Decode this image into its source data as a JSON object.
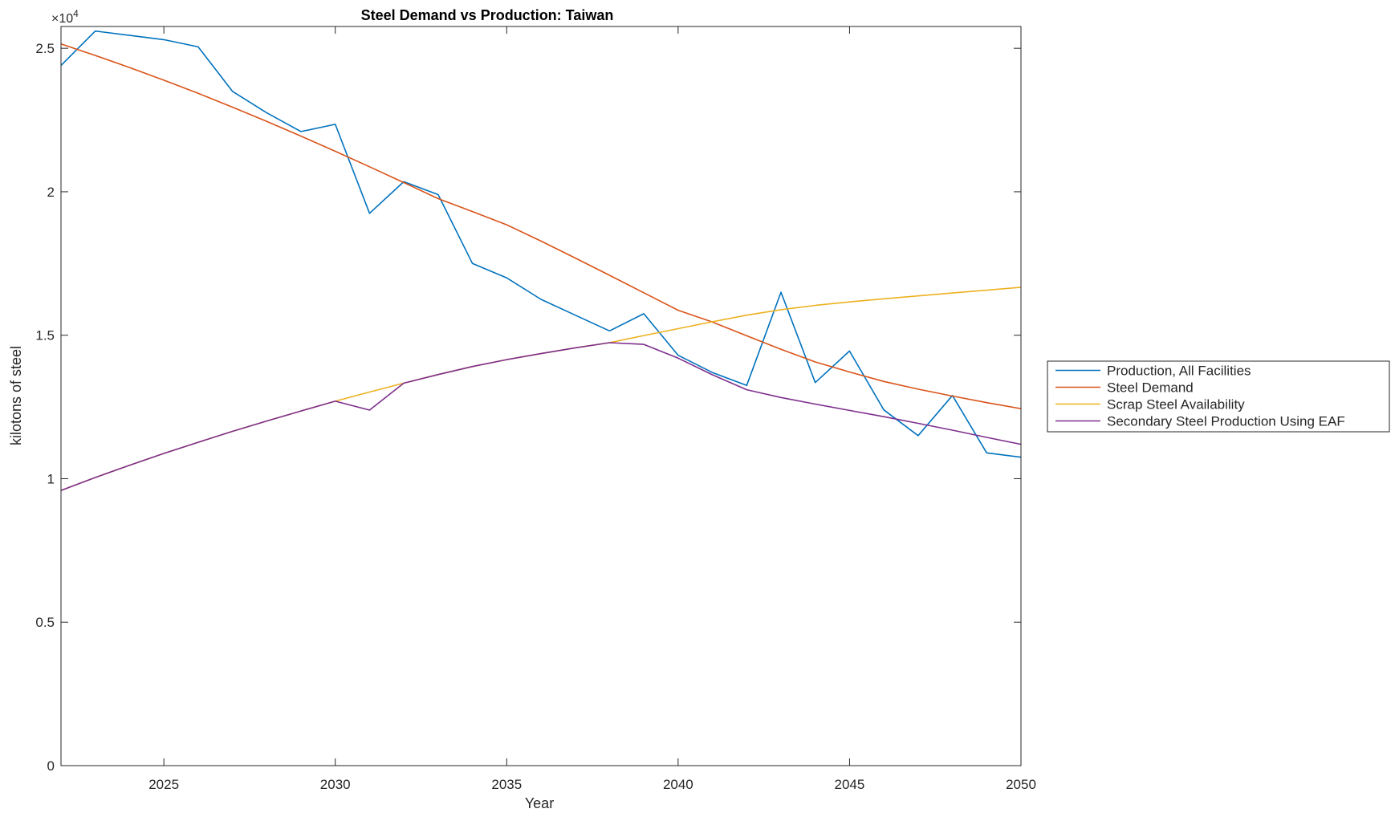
{
  "figure": {
    "title": "Steel Demand vs Production: Taiwan",
    "xlabel": "Year",
    "ylabel": "kilotons of steel",
    "exponent_base": "×10",
    "exponent_power": "4"
  },
  "chart_data": {
    "type": "line",
    "title": "Steel Demand vs Production: Taiwan",
    "xlabel": "Year",
    "ylabel": "kilotons of steel",
    "y_axis_multiplier": 10000,
    "grid": false,
    "legend_position": "right-outside",
    "xlim": [
      2022,
      2050
    ],
    "ylim": [
      0,
      25760
    ],
    "xticks": [
      2025,
      2030,
      2035,
      2040,
      2045,
      2050
    ],
    "xtick_labels": [
      "2025",
      "2030",
      "2035",
      "2040",
      "2045",
      "2050"
    ],
    "ytick_values": [
      0,
      5000,
      10000,
      15000,
      20000,
      25000
    ],
    "ytick_labels": [
      "0",
      "0.5",
      "1",
      "1.5",
      "2",
      "2.5"
    ],
    "x": [
      2022,
      2023,
      2024,
      2025,
      2026,
      2027,
      2028,
      2029,
      2030,
      2031,
      2032,
      2033,
      2034,
      2035,
      2036,
      2037,
      2038,
      2039,
      2040,
      2041,
      2042,
      2043,
      2044,
      2045,
      2046,
      2047,
      2048,
      2049,
      2050
    ],
    "series": [
      {
        "name": "Production, All Facilities",
        "color": "#0072BD",
        "values": [
          24400,
          25600,
          25450,
          25300,
          25050,
          23500,
          22750,
          22100,
          22350,
          19250,
          20350,
          19900,
          17500,
          17000,
          16250,
          15700,
          15150,
          15750,
          14300,
          13700,
          13250,
          16500,
          13350,
          14450,
          12400,
          11500,
          12900,
          10900,
          10750
        ]
      },
      {
        "name": "Steel Demand",
        "color": "#D95319",
        "values": [
          25150,
          24750,
          24330,
          23890,
          23430,
          22950,
          22450,
          21940,
          21410,
          20870,
          20320,
          19760,
          19310,
          18850,
          18280,
          17690,
          17090,
          16480,
          15870,
          15460,
          14980,
          14510,
          14070,
          13720,
          13390,
          13120,
          12880,
          12650,
          12440
        ]
      },
      {
        "name": "Scrap Steel Availability",
        "color": "#EDB120",
        "values": [
          9590,
          10040,
          10470,
          10880,
          11270,
          11650,
          12010,
          12360,
          12700,
          13020,
          13330,
          13630,
          13910,
          14150,
          14360,
          14560,
          14740,
          14990,
          15230,
          15470,
          15700,
          15890,
          16040,
          16160,
          16270,
          16370,
          16470,
          16570,
          16670
        ]
      },
      {
        "name": "Secondary Steel Production Using EAF",
        "color": "#7E2F8E",
        "values": [
          9590,
          10040,
          10470,
          10880,
          11270,
          11650,
          12010,
          12360,
          12700,
          12390,
          13330,
          13630,
          13910,
          14150,
          14360,
          14560,
          14740,
          14680,
          14200,
          13620,
          13100,
          12830,
          12600,
          12380,
          12160,
          11930,
          11690,
          11440,
          11200
        ]
      }
    ]
  }
}
